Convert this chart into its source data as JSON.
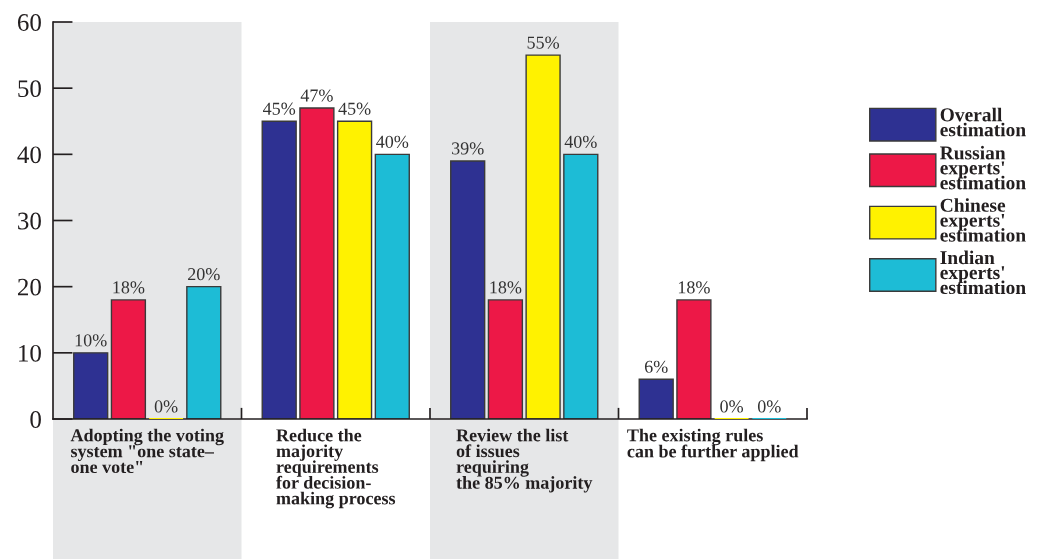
{
  "chart_data": {
    "type": "bar",
    "categories": [
      "Adopting the voting\nsystem \"one state–\none vote\"",
      "Reduce the\nmajority\nrequirements\nfor decision-\nmaking process",
      "Review the list\nof issues\nrequiring\nthe 85% majority",
      "The existing rules\ncan be further applied"
    ],
    "series": [
      {
        "name": "Overall\nestimation",
        "color": "#2e3192",
        "values": [
          10,
          45,
          39,
          6
        ],
        "value_labels": [
          "10%",
          "45%",
          "39%",
          "6%"
        ]
      },
      {
        "name": "Russian\nexperts'\nestimation",
        "color": "#ed1847",
        "values": [
          18,
          47,
          18,
          18
        ],
        "value_labels": [
          "18%",
          "47%",
          "18%",
          "18%"
        ]
      },
      {
        "name": "Chinese\nexperts'\nestimation",
        "color": "#fff200",
        "values": [
          0,
          45,
          55,
          0
        ],
        "value_labels": [
          "0%",
          "45%",
          "55%",
          "0%"
        ]
      },
      {
        "name": "Indian\nexperts'\nestimation",
        "color": "#1dbcd6",
        "values": [
          20,
          40,
          40,
          0
        ],
        "value_labels": [
          "20%",
          "40%",
          "40%",
          "0%"
        ]
      }
    ],
    "ylim": [
      0,
      60
    ],
    "yticks": [
      0,
      10,
      20,
      30,
      40,
      50,
      60
    ],
    "grid": false,
    "legend": "right",
    "bands": [
      {
        "axis": "x",
        "from": "Adopting the voting\nsystem \"one state–\none vote\"",
        "to": "Adopting the voting\nsystem \"one state–\none vote\"",
        "color": "#e6e7e8"
      },
      {
        "axis": "x",
        "from": "Review the list\nof issues\nrequiring\nthe 85% majority",
        "to": "Review the list\nof issues\nrequiring\nthe 85% majority",
        "color": "#e6e7e8"
      }
    ]
  }
}
